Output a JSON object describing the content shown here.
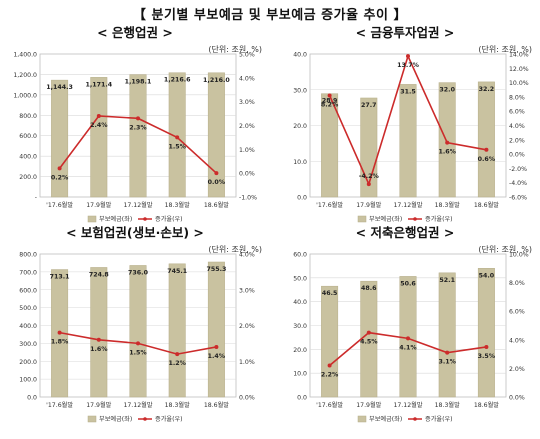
{
  "page_title": "【 분기별 부보예금 및 부보예금 증가율 추이 】",
  "colors": {
    "bar": "#c9c2a0",
    "bar_edge": "#b5ad88",
    "line": "#cc2b2b",
    "grid": "#d9d9d9"
  },
  "chart_data": [
    {
      "type": "bar",
      "title": "< 은행업권 >",
      "unit": "(단위: 조원, %)",
      "categories": [
        "'17.6월말",
        "17.9월말",
        "17.12월말",
        "18.3월말",
        "18.6월말"
      ],
      "series": [
        {
          "name": "부보예금(좌)",
          "type": "bar",
          "axis": "left",
          "values": [
            1144.3,
            1171.4,
            1198.1,
            1216.6,
            1216.0
          ],
          "labels": [
            "1,144.3",
            "1,171.4",
            "1,198.1",
            "1,216.6",
            "1,216.0"
          ]
        },
        {
          "name": "증가율(우)",
          "type": "line",
          "axis": "right",
          "values": [
            0.2,
            2.4,
            2.3,
            1.5,
            0.0
          ],
          "labels": [
            "0.2%",
            "2.4%",
            "2.3%",
            "1.5%",
            "0.0%"
          ]
        }
      ],
      "left_axis": {
        "min": 0,
        "max": 1400,
        "step": 200,
        "ticks": [
          "-",
          "200.0",
          "400.0",
          "600.0",
          "800.0",
          "1,000.0",
          "1,200.0",
          "1,400.0"
        ]
      },
      "right_axis": {
        "min": -1,
        "max": 5,
        "step": 1,
        "ticks": [
          "-1.0%",
          "0.0%",
          "1.0%",
          "2.0%",
          "3.0%",
          "4.0%",
          "5.0%"
        ]
      },
      "grid": true,
      "legend": "bottom"
    },
    {
      "type": "bar",
      "title": "< 금융투자업권 >",
      "unit": "(단위: 조원, %)",
      "categories": [
        "'17.6월말",
        "17.9월말",
        "17.12월말",
        "18.3월말",
        "18.6월말"
      ],
      "series": [
        {
          "name": "부보예금(좌)",
          "type": "bar",
          "axis": "left",
          "values": [
            28.9,
            27.7,
            31.5,
            32.0,
            32.2
          ],
          "labels": [
            "28.9",
            "27.7",
            "31.5",
            "32.0",
            "32.2"
          ]
        },
        {
          "name": "증가율(우)",
          "type": "line",
          "axis": "right",
          "values": [
            8.2,
            -4.2,
            13.7,
            1.6,
            0.6
          ],
          "labels": [
            "8.2%",
            "-4.2%",
            "13.7%",
            "1.6%",
            "0.6%"
          ]
        }
      ],
      "left_axis": {
        "min": 0,
        "max": 40,
        "step": 10,
        "ticks": [
          "0.0",
          "10.0",
          "20.0",
          "30.0",
          "40.0"
        ]
      },
      "right_axis": {
        "min": -6,
        "max": 14,
        "step": 2,
        "ticks": [
          "-6.0%",
          "-4.0%",
          "-2.0%",
          "0.0%",
          "2.0%",
          "4.0%",
          "6.0%",
          "8.0%",
          "10.0%",
          "12.0%",
          "14.0%"
        ]
      },
      "grid": true,
      "legend": "bottom"
    },
    {
      "type": "bar",
      "title": "< 보험업권(생보·손보) >",
      "unit": "(단위: 조원, %)",
      "categories": [
        "'17.6월말",
        "17.9월말",
        "17.12월말",
        "18.3월말",
        "18.6월말"
      ],
      "series": [
        {
          "name": "부보예금(좌)",
          "type": "bar",
          "axis": "left",
          "values": [
            713.1,
            724.8,
            736.0,
            745.1,
            755.3
          ],
          "labels": [
            "713.1",
            "724.8",
            "736.0",
            "745.1",
            "755.3"
          ]
        },
        {
          "name": "증가율(우)",
          "type": "line",
          "axis": "right",
          "values": [
            1.8,
            1.6,
            1.5,
            1.2,
            1.4
          ],
          "labels": [
            "1.8%",
            "1.6%",
            "1.5%",
            "1.2%",
            "1.4%"
          ]
        }
      ],
      "left_axis": {
        "min": 0,
        "max": 800,
        "step": 100,
        "ticks": [
          "0.0",
          "100.0",
          "200.0",
          "300.0",
          "400.0",
          "500.0",
          "600.0",
          "700.0",
          "800.0"
        ]
      },
      "right_axis": {
        "min": 0,
        "max": 4,
        "step": 1,
        "ticks": [
          "0.0%",
          "1.0%",
          "2.0%",
          "3.0%",
          "4.0%"
        ]
      },
      "grid": true,
      "legend": "bottom"
    },
    {
      "type": "bar",
      "title": "< 저축은행업권 >",
      "unit": "(단위: 조원, %)",
      "categories": [
        "'17.6월말",
        "17.9월말",
        "17.12월말",
        "18.3월말",
        "18.6월말"
      ],
      "series": [
        {
          "name": "부보예금(좌)",
          "type": "bar",
          "axis": "left",
          "values": [
            46.5,
            48.6,
            50.6,
            52.1,
            54.0
          ],
          "labels": [
            "46.5",
            "48.6",
            "50.6",
            "52.1",
            "54.0"
          ]
        },
        {
          "name": "증가율(우)",
          "type": "line",
          "axis": "right",
          "values": [
            2.2,
            4.5,
            4.1,
            3.1,
            3.5
          ],
          "labels": [
            "2.2%",
            "4.5%",
            "4.1%",
            "3.1%",
            "3.5%"
          ]
        }
      ],
      "left_axis": {
        "min": 0,
        "max": 60,
        "step": 10,
        "ticks": [
          "0.0",
          "10.0",
          "20.0",
          "30.0",
          "40.0",
          "50.0",
          "60.0"
        ]
      },
      "right_axis": {
        "min": 0,
        "max": 10,
        "step": 2,
        "ticks": [
          "0.0%",
          "2.0%",
          "4.0%",
          "6.0%",
          "8.0%",
          "10.0%"
        ]
      },
      "grid": true,
      "legend": "bottom"
    }
  ]
}
